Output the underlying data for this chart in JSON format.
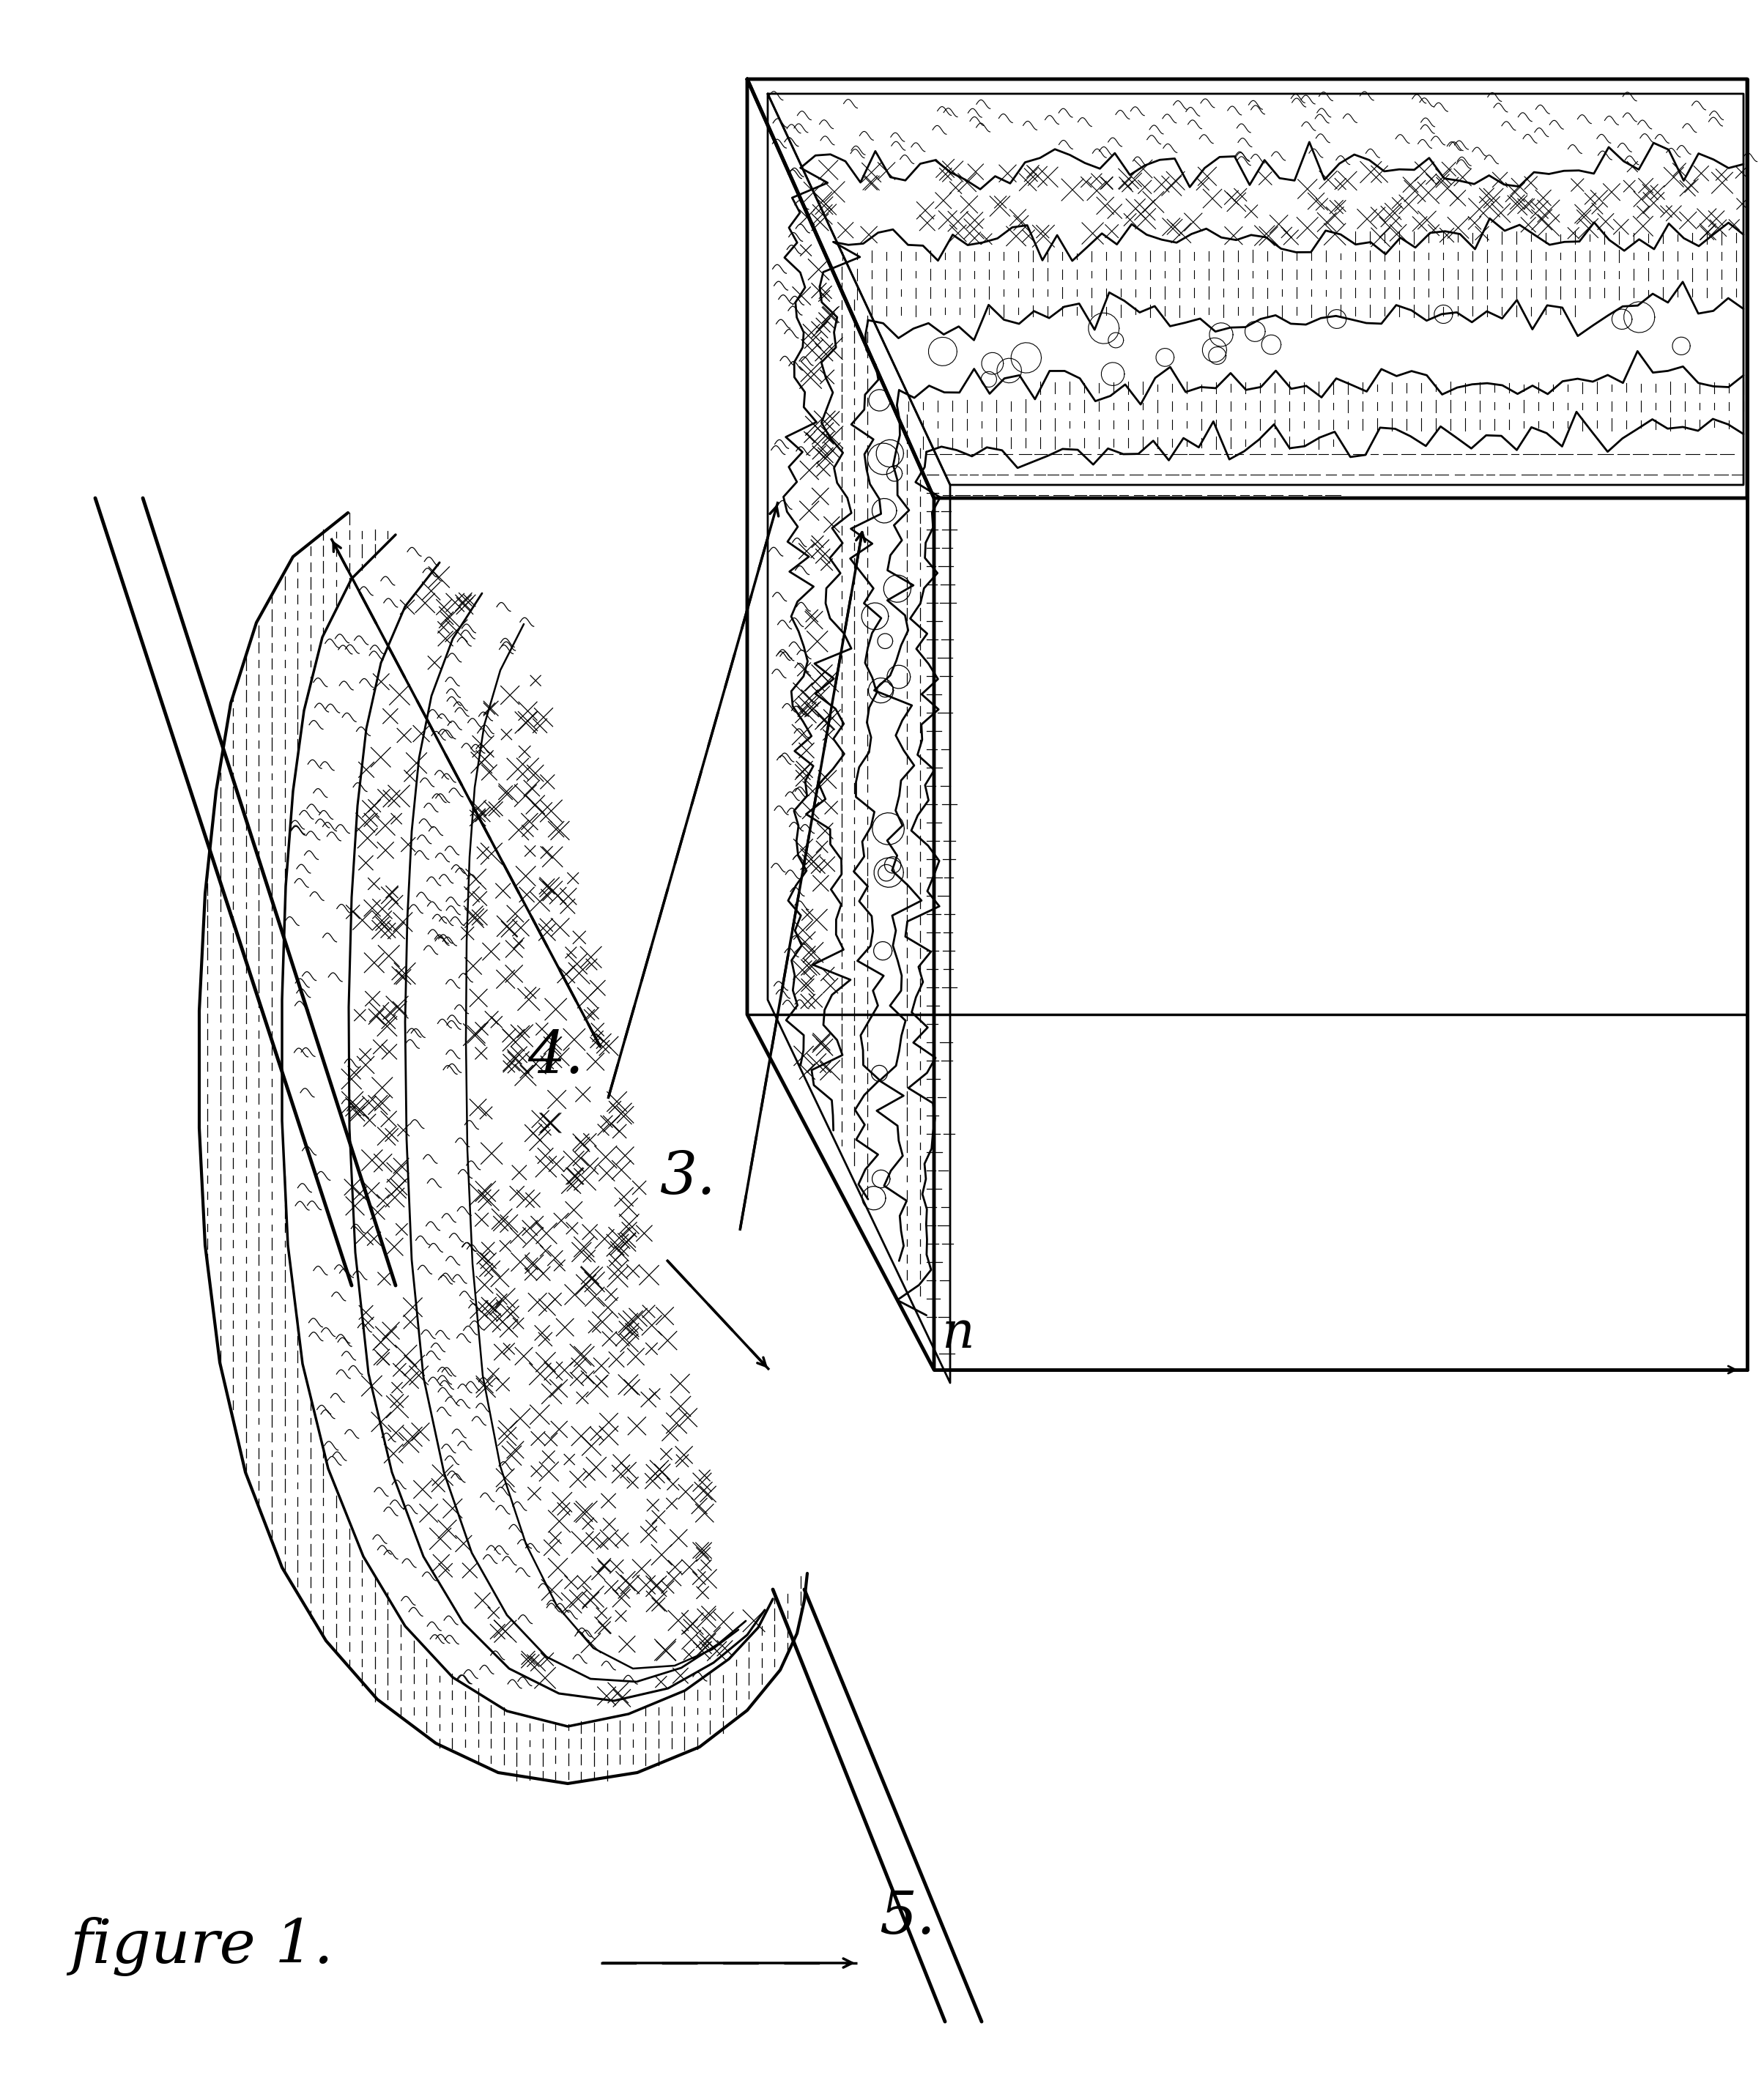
{
  "title": "figure 1.",
  "background_color": "#ffffff",
  "line_color": "#000000",
  "label_3": "3.",
  "label_4": "4.",
  "label_5": "5.",
  "label_n": "n",
  "fig_width": 24.08,
  "fig_height": 28.52
}
